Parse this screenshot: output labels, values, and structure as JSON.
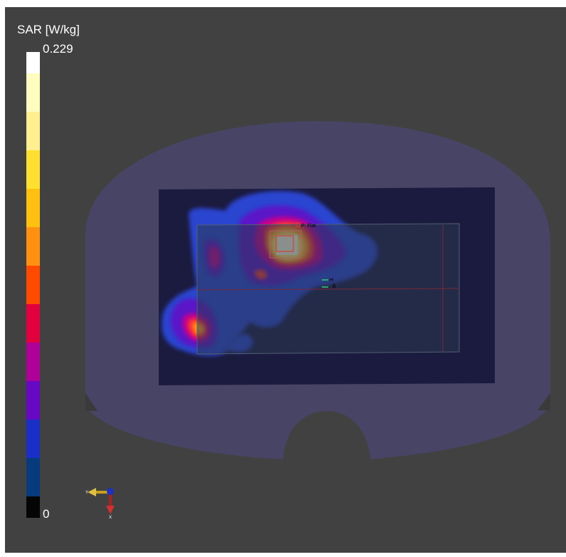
{
  "legend": {
    "title": "SAR [W/kg]",
    "max_label": "0.229",
    "min_label": "0",
    "colors": [
      "#ffffff",
      "#fffcc0",
      "#ffef90",
      "#ffe030",
      "#ffc010",
      "#ff9010",
      "#ff4a00",
      "#e3003f",
      "#b0009a",
      "#6608c4",
      "#1a2ec8",
      "#063c7e",
      "#050505"
    ]
  },
  "scene": {
    "background_color": "#414141",
    "phantom_color": "#474466",
    "box_color": "#1b1b40",
    "plate_color": "#2c394e",
    "probe_label": "P: Flat",
    "marker_labels": [
      "H",
      "B"
    ]
  },
  "axes_triad": {
    "y_label": "Y",
    "x_label": "X"
  }
}
